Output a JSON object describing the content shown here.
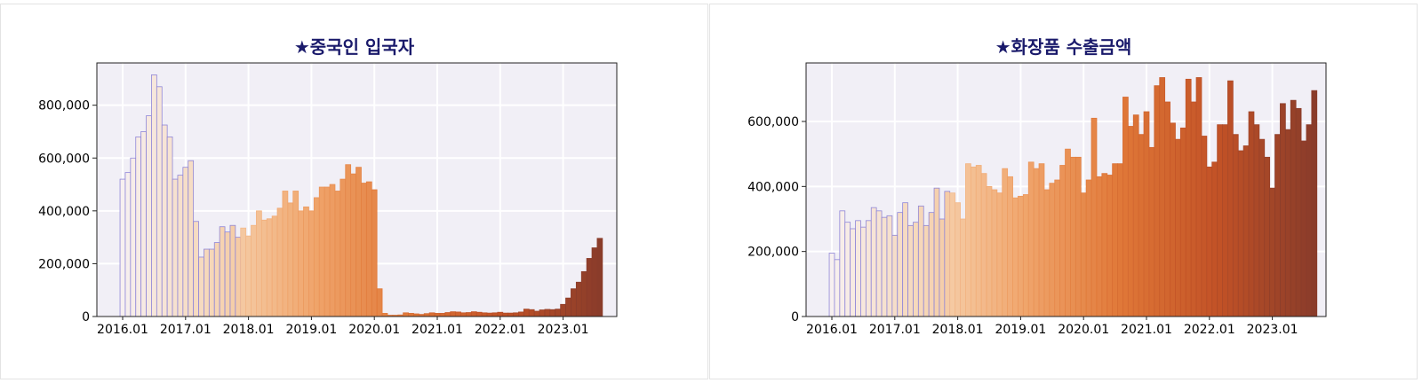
{
  "chart_data": [
    {
      "type": "bar",
      "title": "★중국인 입국자",
      "xlabel": "",
      "ylabel": "",
      "ylim": [
        0,
        960000
      ],
      "y_ticks": [
        0,
        200000,
        400000,
        600000,
        800000
      ],
      "y_tick_labels": [
        "0",
        "200,000",
        "400,000",
        "600,000",
        "800,000"
      ],
      "x_tick_labels": [
        "2016.01",
        "2017.01",
        "2018.01",
        "2019.01",
        "2020.01",
        "2021.01",
        "2022.01",
        "2023.01"
      ],
      "grid": true,
      "color_scale": [
        "#f7f0f0",
        "#f6d5b4",
        "#f0a56c",
        "#e07838",
        "#c25226",
        "#8a3c2a"
      ],
      "values": [
        520000,
        545000,
        600000,
        680000,
        700000,
        760000,
        915000,
        870000,
        725000,
        680000,
        520000,
        535000,
        565000,
        590000,
        360000,
        225000,
        255000,
        255000,
        280000,
        340000,
        320000,
        345000,
        300000,
        335000,
        305000,
        345000,
        400000,
        365000,
        370000,
        380000,
        410000,
        475000,
        430000,
        475000,
        400000,
        415000,
        400000,
        450000,
        490000,
        490000,
        500000,
        475000,
        520000,
        575000,
        540000,
        565000,
        505000,
        510000,
        480000,
        105000,
        12000,
        5000,
        5000,
        6000,
        14000,
        12000,
        10000,
        8000,
        11000,
        14000,
        12000,
        12000,
        15000,
        18000,
        17000,
        14000,
        15000,
        18000,
        16000,
        14000,
        13000,
        14000,
        16000,
        13000,
        13000,
        14000,
        17000,
        28000,
        26000,
        20000,
        25000,
        27000,
        26000,
        28000,
        46000,
        70000,
        105000,
        130000,
        170000,
        220000,
        260000,
        296000
      ]
    },
    {
      "type": "bar",
      "title": "★화장품 수출금액",
      "xlabel": "",
      "ylabel": "",
      "ylim": [
        0,
        780000
      ],
      "y_ticks": [
        0,
        200000,
        400000,
        600000
      ],
      "y_tick_labels": [
        "0",
        "200,000",
        "400,000",
        "600,000"
      ],
      "x_tick_labels": [
        "2016.01",
        "2017.01",
        "2018.01",
        "2019.01",
        "2020.01",
        "2021.01",
        "2022.01",
        "2023.01"
      ],
      "grid": true,
      "color_scale": [
        "#f7f0f0",
        "#f6d5b4",
        "#f0a56c",
        "#e07838",
        "#c25226",
        "#8a3c2a"
      ],
      "values": [
        195000,
        175000,
        325000,
        290000,
        270000,
        295000,
        275000,
        295000,
        335000,
        325000,
        305000,
        310000,
        250000,
        320000,
        350000,
        280000,
        290000,
        340000,
        280000,
        320000,
        395000,
        300000,
        385000,
        380000,
        350000,
        300000,
        470000,
        460000,
        465000,
        440000,
        400000,
        390000,
        380000,
        455000,
        430000,
        365000,
        370000,
        375000,
        475000,
        455000,
        470000,
        390000,
        410000,
        420000,
        465000,
        515000,
        490000,
        490000,
        380000,
        420000,
        610000,
        430000,
        440000,
        435000,
        470000,
        470000,
        675000,
        585000,
        620000,
        560000,
        630000,
        520000,
        710000,
        735000,
        660000,
        595000,
        545000,
        580000,
        730000,
        660000,
        735000,
        555000,
        460000,
        475000,
        590000,
        590000,
        725000,
        560000,
        510000,
        525000,
        630000,
        590000,
        545000,
        490000,
        395000,
        560000,
        655000,
        575000,
        665000,
        640000,
        540000,
        590000,
        695000
      ]
    }
  ]
}
